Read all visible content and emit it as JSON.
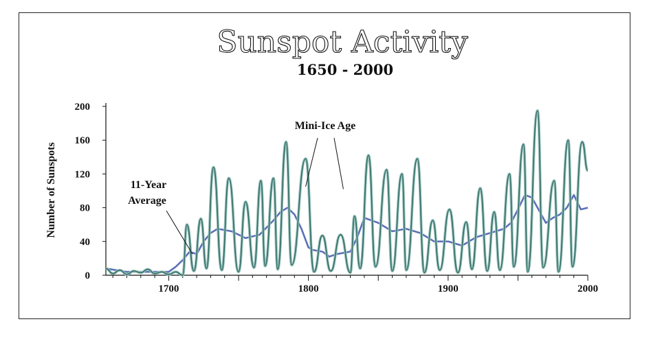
{
  "chart_data": {
    "type": "line",
    "title": "Sunspot Activity",
    "subtitle": "1650 - 2000",
    "xlabel": "",
    "ylabel": "Number of Sunspots",
    "xlim": [
      1655,
      2000
    ],
    "ylim": [
      0,
      200
    ],
    "xticks": [
      1700,
      1800,
      1900,
      2000
    ],
    "yticks": [
      0,
      40,
      80,
      120,
      160,
      200
    ],
    "grid": false,
    "legend": "none",
    "annotations": [
      {
        "text": "11-Year",
        "text2": "Average",
        "points_to": [
          1717,
          25
        ]
      },
      {
        "text": "Mini-Ice Age",
        "points_to": [
          [
            1798,
            105
          ],
          [
            1825,
            102
          ]
        ]
      }
    ],
    "colors": {
      "sunspots": "#2e6b63",
      "average": "#5b6fb8",
      "frame": "#222222"
    },
    "series": [
      {
        "id": "yearly",
        "x": [
          1655,
          1660,
          1665,
          1670,
          1675,
          1680,
          1685,
          1690,
          1695,
          1700,
          1705,
          1710,
          1713,
          1718,
          1723,
          1727,
          1732,
          1738,
          1743,
          1750,
          1755,
          1761,
          1766,
          1769,
          1775,
          1778,
          1784,
          1788,
          1798,
          1804,
          1810,
          1816,
          1823,
          1830,
          1833,
          1837,
          1843,
          1848,
          1856,
          1860,
          1867,
          1870,
          1878,
          1883,
          1889,
          1894,
          1901,
          1907,
          1913,
          1917,
          1923,
          1928,
          1933,
          1937,
          1944,
          1947,
          1954,
          1957,
          1964,
          1968,
          1976,
          1979,
          1986,
          1989,
          1996,
          2000
        ],
        "values": [
          8,
          2,
          6,
          1,
          5,
          3,
          7,
          2,
          4,
          1,
          4,
          0,
          60,
          5,
          67,
          8,
          128,
          6,
          115,
          4,
          87,
          9,
          112,
          11,
          115,
          7,
          158,
          12,
          138,
          4,
          47,
          5,
          48,
          3,
          70,
          8,
          142,
          10,
          125,
          5,
          120,
          6,
          138,
          3,
          65,
          6,
          78,
          3,
          63,
          7,
          103,
          5,
          75,
          6,
          120,
          10,
          155,
          4,
          195,
          9,
          112,
          4,
          160,
          10,
          158,
          124
        ]
      },
      {
        "id": "average",
        "x": [
          1655,
          1670,
          1680,
          1700,
          1705,
          1710,
          1715,
          1720,
          1725,
          1730,
          1735,
          1745,
          1755,
          1765,
          1775,
          1780,
          1785,
          1790,
          1795,
          1800,
          1803,
          1810,
          1815,
          1820,
          1830,
          1835,
          1840,
          1850,
          1860,
          1870,
          1880,
          1890,
          1900,
          1910,
          1920,
          1930,
          1940,
          1945,
          1950,
          1955,
          1960,
          1970,
          1975,
          1980,
          1985,
          1990,
          1995,
          2000
        ],
        "values": [
          8,
          4,
          4,
          4,
          10,
          18,
          28,
          25,
          40,
          50,
          55,
          52,
          44,
          48,
          65,
          75,
          80,
          72,
          55,
          33,
          30,
          28,
          22,
          25,
          28,
          45,
          68,
          62,
          52,
          55,
          50,
          40,
          40,
          35,
          45,
          50,
          55,
          62,
          78,
          95,
          92,
          62,
          68,
          72,
          80,
          95,
          78,
          80
        ]
      }
    ]
  }
}
